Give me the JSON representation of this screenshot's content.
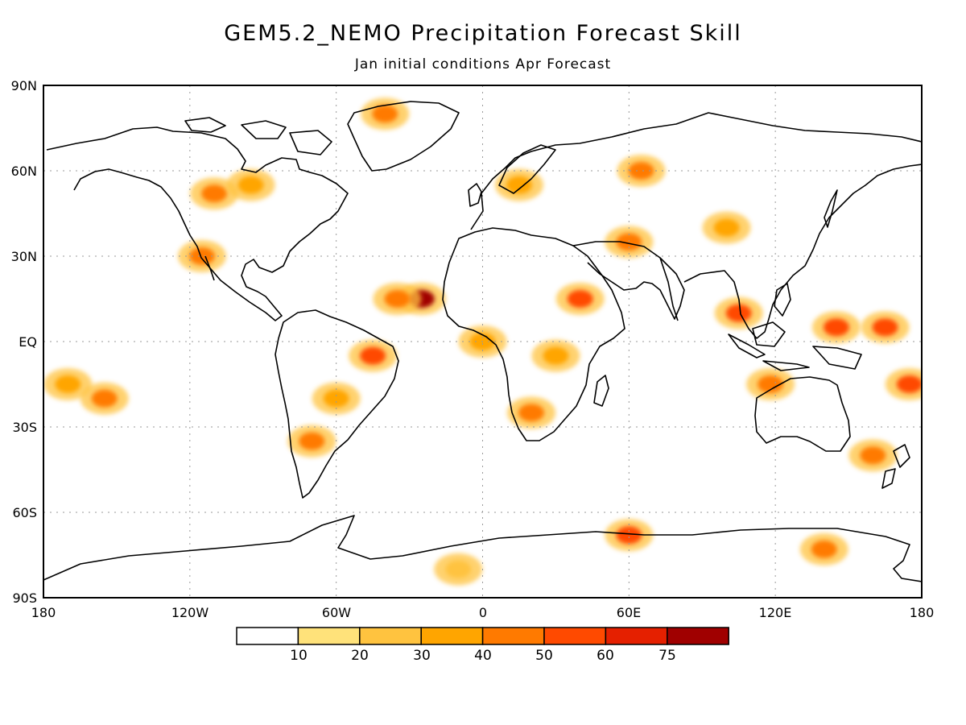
{
  "title": "GEM5.2_NEMO Precipitation Forecast Skill",
  "subtitle": "Jan initial conditions  Apr Forecast",
  "axes": {
    "lat_ticks": [
      "90N",
      "60N",
      "30N",
      "EQ",
      "30S",
      "60S",
      "90S"
    ],
    "lon_ticks": [
      "180",
      "120W",
      "60W",
      "0",
      "60E",
      "120E",
      "180"
    ],
    "lat_values": [
      90,
      60,
      30,
      0,
      -30,
      -60,
      -90
    ],
    "lon_values": [
      -180,
      -120,
      -60,
      0,
      60,
      120,
      180
    ],
    "grid": true,
    "projection": "equirectangular"
  },
  "colorbar": {
    "labels": [
      "10",
      "20",
      "30",
      "40",
      "50",
      "60",
      "75"
    ],
    "colors": [
      "#ffffff",
      "#ffe27a",
      "#ffc33f",
      "#ffa500",
      "#ff7a00",
      "#ff4a00",
      "#e52000",
      "#a00000"
    ]
  },
  "chart_data": {
    "type": "heatmap",
    "title": "GEM5.2_NEMO Precipitation Forecast Skill",
    "subtitle": "Jan initial conditions  Apr Forecast",
    "xlim": [
      -180,
      180
    ],
    "ylim": [
      -90,
      90
    ],
    "levels": [
      10,
      20,
      30,
      40,
      50,
      60,
      75
    ],
    "skill_regions": [
      {
        "lon": -115,
        "lat": 30,
        "level": 40
      },
      {
        "lon": -110,
        "lat": 52,
        "level": 40
      },
      {
        "lon": -95,
        "lat": 55,
        "level": 30
      },
      {
        "lon": -40,
        "lat": 80,
        "level": 40
      },
      {
        "lon": -25,
        "lat": 15,
        "level": 75
      },
      {
        "lon": -45,
        "lat": -5,
        "level": 50
      },
      {
        "lon": -60,
        "lat": -20,
        "level": 30
      },
      {
        "lon": -70,
        "lat": -35,
        "level": 40
      },
      {
        "lon": -35,
        "lat": 15,
        "level": 40
      },
      {
        "lon": 40,
        "lat": 15,
        "level": 50
      },
      {
        "lon": 60,
        "lat": 35,
        "level": 40
      },
      {
        "lon": 65,
        "lat": 60,
        "level": 40
      },
      {
        "lon": 105,
        "lat": 10,
        "level": 50
      },
      {
        "lon": 145,
        "lat": 5,
        "level": 50
      },
      {
        "lon": 165,
        "lat": 5,
        "level": 50
      },
      {
        "lon": 175,
        "lat": -15,
        "level": 50
      },
      {
        "lon": 118,
        "lat": -15,
        "level": 40
      },
      {
        "lon": 20,
        "lat": -25,
        "level": 40
      },
      {
        "lon": 15,
        "lat": 55,
        "level": 30
      },
      {
        "lon": 30,
        "lat": -5,
        "level": 30
      },
      {
        "lon": -170,
        "lat": -15,
        "level": 30
      },
      {
        "lon": -155,
        "lat": -20,
        "level": 40
      },
      {
        "lon": 60,
        "lat": -68,
        "level": 50
      },
      {
        "lon": 140,
        "lat": -73,
        "level": 40
      },
      {
        "lon": -10,
        "lat": -80,
        "level": 20
      },
      {
        "lon": 160,
        "lat": -40,
        "level": 40
      },
      {
        "lon": 0,
        "lat": 0,
        "level": 30
      },
      {
        "lon": 100,
        "lat": 40,
        "level": 30
      }
    ]
  }
}
